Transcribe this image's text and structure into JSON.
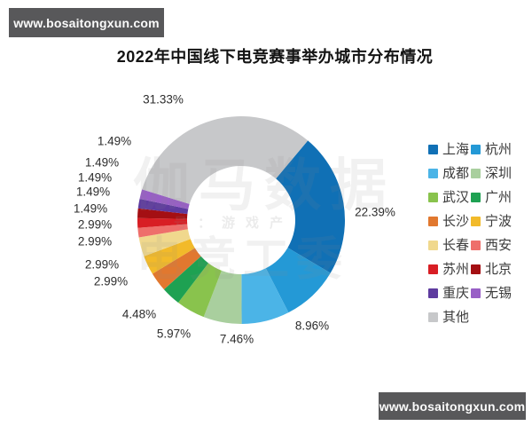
{
  "title": "2022年中国线下电竞赛事举办城市分布情况",
  "watermark_top": {
    "text": "www.bosaitongxun.com"
  },
  "watermark_bottom": {
    "text": "www.bosaitongxun.com"
  },
  "background_watermark": {
    "row1": "伽马数据",
    "row2": "号：游戏产",
    "row3": "电竞工委"
  },
  "chart_data": {
    "type": "pie",
    "donut": true,
    "hole_radius_ratio": 0.52,
    "start_angle_deg": 40,
    "direction": "clockwise",
    "legend_position": "right",
    "title": "2022年中国线下电竞赛事举办城市分布情况",
    "series": [
      {
        "name": "上海",
        "value": 22.39,
        "label": "22.39%",
        "color": "#1070b5",
        "slug": "shanghai"
      },
      {
        "name": "杭州",
        "value": 8.96,
        "label": "8.96%",
        "color": "#2499d6",
        "slug": "hangzhou"
      },
      {
        "name": "成都",
        "value": 7.46,
        "label": "7.46%",
        "color": "#4bb4e7",
        "slug": "chengdu"
      },
      {
        "name": "深圳",
        "value": 5.97,
        "label": "5.97%",
        "color": "#a9cf9e",
        "slug": "shenzhen"
      },
      {
        "name": "武汉",
        "value": 4.48,
        "label": "4.48%",
        "color": "#89c34d",
        "slug": "wuhan"
      },
      {
        "name": "广州",
        "value": 2.99,
        "label": "2.99%",
        "color": "#1ea152",
        "slug": "guangzhou"
      },
      {
        "name": "长沙",
        "value": 2.99,
        "label": "2.99%",
        "color": "#e1782f",
        "slug": "changsha"
      },
      {
        "name": "宁波",
        "value": 2.99,
        "label": "2.99%",
        "color": "#f2ba2a",
        "slug": "ningbo"
      },
      {
        "name": "长春",
        "value": 2.99,
        "label": "2.99%",
        "color": "#f0d88d",
        "slug": "changchun"
      },
      {
        "name": "西安",
        "value": 1.49,
        "label": "1.49%",
        "color": "#ee6f6b",
        "slug": "xian"
      },
      {
        "name": "苏州",
        "value": 1.49,
        "label": "1.49%",
        "color": "#d81e24",
        "slug": "suzhou"
      },
      {
        "name": "北京",
        "value": 1.49,
        "label": "1.49%",
        "color": "#a40f13",
        "slug": "beijing"
      },
      {
        "name": "重庆",
        "value": 1.49,
        "label": "1.49%",
        "color": "#5e3b9f",
        "slug": "chongqing"
      },
      {
        "name": "无锡",
        "value": 1.49,
        "label": "1.49%",
        "color": "#985fc6",
        "slug": "wuxi"
      },
      {
        "name": "其他",
        "value": 31.33,
        "label": "31.33%",
        "color": "#c7c8ca",
        "slug": "qita"
      }
    ]
  }
}
